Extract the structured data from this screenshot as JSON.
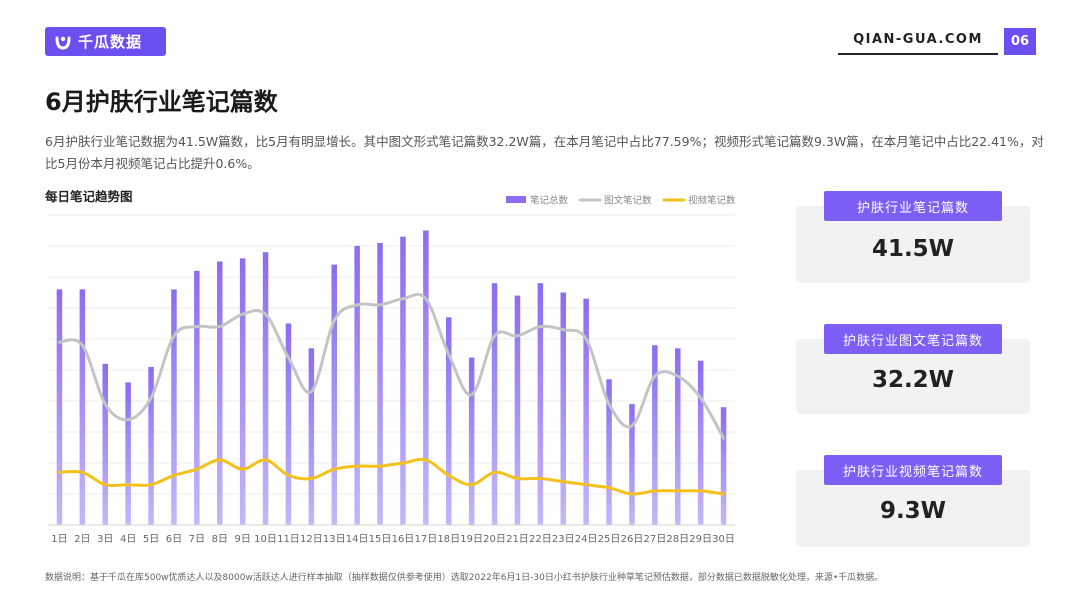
{
  "header": {
    "logo_text": "千瓜数据",
    "site": "QIAN-GUA.COM",
    "page_number": "06"
  },
  "title": "6月护肤行业笔记篇数",
  "description": "6月护肤行业笔记数据为41.5W篇数，比5月有明显增长。其中图文形式笔记篇数32.2W篇，在本月笔记中占比77.59%；视频形式笔记篇数9.3W篇，在本月笔记中占比22.41%，对比5月份本月视频笔记占比提升0.6%。",
  "chart_title": "每日笔记趋势图",
  "cards": [
    {
      "label": "护肤行业笔记篇数",
      "value": "41.5W"
    },
    {
      "label": "护肤行业图文笔记篇数",
      "value": "32.2W"
    },
    {
      "label": "护肤行业视频笔记篇数",
      "value": "9.3W"
    }
  ],
  "footnote": "数据说明：基于千瓜在库500w优质达人以及8000w活跃达人进行样本抽取（抽样数据仅供参考使用）选取2022年6月1日-30日小红书护肤行业种草笔记预估数据，部分数据已数据脱敏化处理，来源•千瓜数据。",
  "colors": {
    "accent": "#6b4ff0",
    "bar_top": "#8b6cf2",
    "bar_bottom": "#c6b6fa",
    "line_image_text": "#c4c4c4",
    "line_video": "#f2c21b"
  },
  "chart_data": {
    "type": "bar",
    "categories": [
      "1日",
      "2日",
      "3日",
      "4日",
      "5日",
      "6日",
      "7日",
      "8日",
      "9日",
      "10日",
      "11日",
      "12日",
      "13日",
      "14日",
      "15日",
      "16日",
      "17日",
      "18日",
      "19日",
      "20日",
      "21日",
      "22日",
      "23日",
      "24日",
      "25日",
      "26日",
      "27日",
      "28日",
      "29日",
      "30日"
    ],
    "series": [
      {
        "name": "笔记总数",
        "type": "bar",
        "values": [
          7.6,
          7.6,
          5.2,
          4.6,
          5.1,
          7.6,
          8.2,
          8.5,
          8.6,
          8.8,
          6.5,
          5.7,
          8.4,
          9.0,
          9.1,
          9.3,
          9.5,
          6.7,
          5.4,
          7.8,
          7.4,
          7.8,
          7.5,
          7.3,
          4.7,
          3.9,
          5.8,
          5.7,
          5.3,
          3.8
        ]
      },
      {
        "name": "图文笔记数",
        "type": "line",
        "values": [
          5.9,
          5.8,
          3.9,
          3.4,
          4.1,
          6.1,
          6.4,
          6.4,
          6.8,
          6.8,
          5.4,
          4.3,
          6.6,
          7.1,
          7.1,
          7.3,
          7.3,
          5.5,
          4.2,
          6.1,
          6.1,
          6.4,
          6.3,
          6.0,
          3.9,
          3.2,
          4.8,
          4.8,
          4.1,
          2.8
        ]
      },
      {
        "name": "视频笔记数",
        "type": "line",
        "values": [
          1.7,
          1.7,
          1.3,
          1.3,
          1.3,
          1.6,
          1.8,
          2.1,
          1.8,
          2.1,
          1.6,
          1.5,
          1.8,
          1.9,
          1.9,
          2.0,
          2.1,
          1.6,
          1.3,
          1.7,
          1.5,
          1.5,
          1.4,
          1.3,
          1.2,
          1.0,
          1.1,
          1.1,
          1.1,
          1.0
        ]
      }
    ],
    "ylim": [
      0,
      10
    ],
    "grid": true,
    "legend": "top-right",
    "xlabel": "",
    "ylabel": ""
  }
}
